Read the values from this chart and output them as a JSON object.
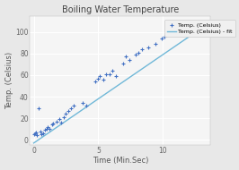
{
  "title": "Boiling Water Temperature",
  "xlabel": "Time (Min.Sec)",
  "ylabel": "Temp. (Celsius)",
  "scatter_color": "#4472c4",
  "line_color": "#70b8d8",
  "legend_scatter": "Temp. (Celsius)",
  "legend_line": "Temp. (Celsius) - fit",
  "scatter_points": [
    [
      0.0,
      5
    ],
    [
      0.1,
      6
    ],
    [
      0.15,
      7
    ],
    [
      0.25,
      4
    ],
    [
      0.5,
      8
    ],
    [
      0.6,
      5
    ],
    [
      0.7,
      6
    ],
    [
      0.9,
      9
    ],
    [
      1.0,
      10
    ],
    [
      1.1,
      12
    ],
    [
      1.2,
      10
    ],
    [
      1.4,
      14
    ],
    [
      1.5,
      15
    ],
    [
      1.8,
      17
    ],
    [
      2.0,
      19
    ],
    [
      2.1,
      16
    ],
    [
      2.3,
      21
    ],
    [
      2.5,
      24
    ],
    [
      2.7,
      27
    ],
    [
      2.9,
      29
    ],
    [
      3.1,
      32
    ],
    [
      0.35,
      29
    ],
    [
      3.8,
      34
    ],
    [
      4.1,
      32
    ],
    [
      4.8,
      54
    ],
    [
      5.0,
      57
    ],
    [
      5.1,
      59
    ],
    [
      5.4,
      56
    ],
    [
      5.6,
      61
    ],
    [
      5.9,
      61
    ],
    [
      6.1,
      64
    ],
    [
      6.4,
      59
    ],
    [
      6.9,
      71
    ],
    [
      7.1,
      77
    ],
    [
      7.4,
      74
    ],
    [
      7.9,
      79
    ],
    [
      8.1,
      81
    ],
    [
      8.4,
      84
    ],
    [
      8.9,
      86
    ],
    [
      9.4,
      89
    ],
    [
      9.9,
      94
    ],
    [
      10.1,
      96
    ],
    [
      10.9,
      99
    ],
    [
      11.4,
      98
    ],
    [
      11.9,
      99
    ],
    [
      12.4,
      100
    ],
    [
      12.9,
      101
    ],
    [
      13.0,
      105
    ]
  ],
  "fit_x": [
    0.0,
    13.5
  ],
  "fit_slope": 8.2,
  "fit_intercept": -3.0,
  "xlim": [
    -0.3,
    13.7
  ],
  "ylim": [
    -5,
    115
  ],
  "xticks": [
    0,
    5,
    10
  ],
  "yticks": [
    0,
    20,
    40,
    60,
    80,
    100
  ],
  "background_color": "#e8e8e8",
  "plot_bg_color": "#f5f5f5",
  "grid_color": "#ffffff",
  "title_fontsize": 7,
  "label_fontsize": 6,
  "tick_fontsize": 5.5
}
